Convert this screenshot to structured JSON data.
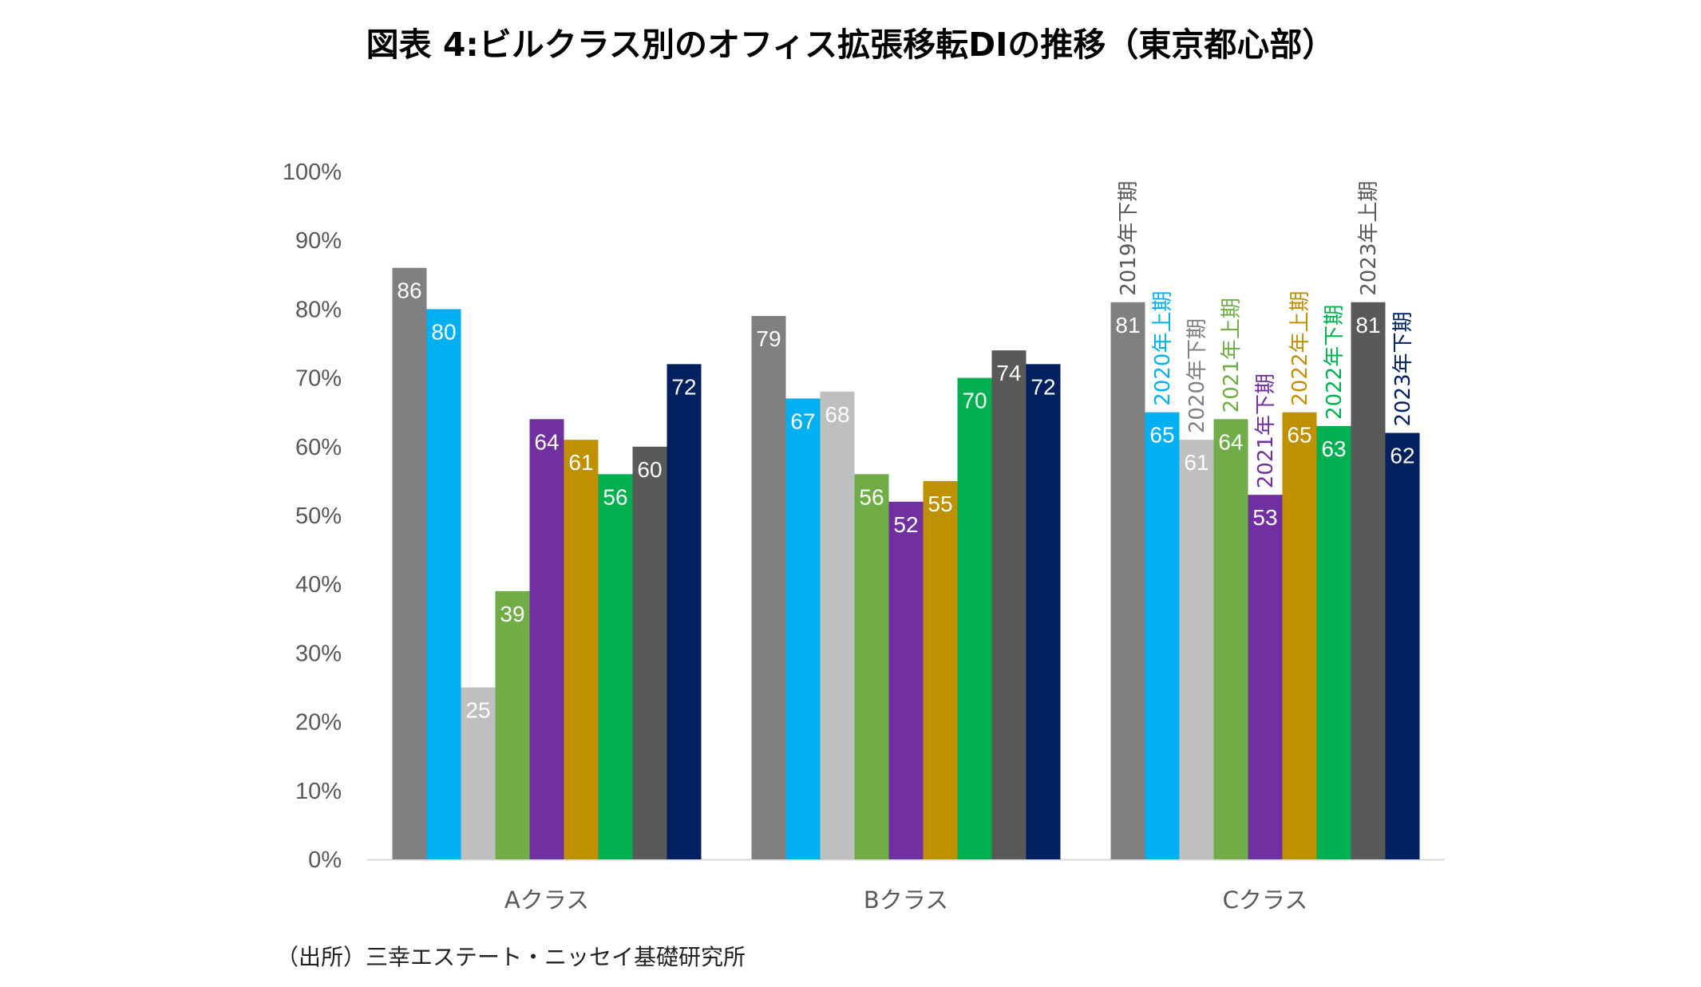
{
  "title": "図表 4:ビルクラス別のオフィス拡張移転DIの推移（東京都心部）",
  "source": "（出所）三幸エステート・ニッセイ基礎研究所",
  "chart_data": {
    "type": "bar",
    "title": "図表 4:ビルクラス別のオフィス拡張移転DIの推移（東京都心部）",
    "xlabel": "",
    "ylabel": "",
    "ylim": [
      0,
      100
    ],
    "y_ticks": [
      "0%",
      "10%",
      "20%",
      "30%",
      "40%",
      "50%",
      "60%",
      "70%",
      "80%",
      "90%",
      "100%"
    ],
    "categories": [
      "Aクラス",
      "Bクラス",
      "Cクラス"
    ],
    "legend_placement": "inline above Cクラス bars (rotated)",
    "series": [
      {
        "name": "2019年下期",
        "color": "#808080",
        "label_color": "#595959",
        "values": [
          86,
          79,
          81
        ]
      },
      {
        "name": "2020年上期",
        "color": "#00B0F0",
        "label_color": "#00B0F0",
        "values": [
          80,
          67,
          65
        ]
      },
      {
        "name": "2020年下期",
        "color": "#BFBFBF",
        "label_color": "#808080",
        "values": [
          25,
          68,
          61
        ]
      },
      {
        "name": "2021年上期",
        "color": "#70AD47",
        "label_color": "#70AD47",
        "values": [
          39,
          56,
          64
        ]
      },
      {
        "name": "2021年下期",
        "color": "#7030A0",
        "label_color": "#7030A0",
        "values": [
          64,
          52,
          53
        ]
      },
      {
        "name": "2022年上期",
        "color": "#BF9000",
        "label_color": "#BF9000",
        "values": [
          61,
          55,
          65
        ]
      },
      {
        "name": "2022年下期",
        "color": "#00B050",
        "label_color": "#00B050",
        "values": [
          56,
          70,
          63
        ]
      },
      {
        "name": "2023年上期",
        "color": "#595959",
        "label_color": "#595959",
        "values": [
          60,
          74,
          81
        ]
      },
      {
        "name": "2023年下期",
        "color": "#002060",
        "label_color": "#002060",
        "values": [
          72,
          72,
          62
        ]
      }
    ]
  }
}
